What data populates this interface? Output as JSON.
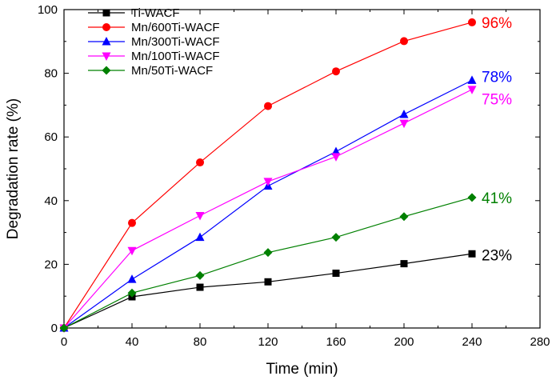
{
  "chart_data": {
    "type": "line",
    "title": "",
    "xlabel": "Time (min)",
    "ylabel": "Degradation rate (%)",
    "xlim": [
      0,
      280
    ],
    "ylim": [
      0,
      100
    ],
    "x_ticks": [
      0,
      40,
      80,
      120,
      160,
      200,
      240,
      280
    ],
    "y_ticks": [
      0,
      20,
      40,
      60,
      80,
      100
    ],
    "grid": false,
    "legend_position": "top-left",
    "x": [
      0,
      40,
      80,
      120,
      160,
      200,
      240
    ],
    "series": [
      {
        "name": "Ti-WACF",
        "color": "#000000",
        "marker": "square",
        "values": [
          0,
          9.8,
          12.8,
          14.5,
          17.2,
          20.2,
          23.3
        ]
      },
      {
        "name": "Mn/600Ti-WACF",
        "color": "#ff0000",
        "marker": "circle",
        "values": [
          0,
          33,
          52,
          69.7,
          80.6,
          90.1,
          96
        ]
      },
      {
        "name": "Mn/300Ti-WACF",
        "color": "#0000ff",
        "marker": "triangle-up",
        "values": [
          0,
          15.3,
          28.5,
          44.6,
          55.4,
          67.1,
          77.8
        ]
      },
      {
        "name": "Mn/100Ti-WACF",
        "color": "#ff00ff",
        "marker": "triangle-down",
        "values": [
          0,
          24.3,
          35.3,
          46,
          53.8,
          64.3,
          74.9
        ]
      },
      {
        "name": "Mn/50Ti-WACF",
        "color": "#008000",
        "marker": "diamond",
        "values": [
          0,
          11,
          16.5,
          23.7,
          28.5,
          35,
          41
        ]
      }
    ],
    "annotations": [
      {
        "text": "96%",
        "x": 240,
        "y": 96,
        "color": "#ff0000"
      },
      {
        "text": "78%",
        "x": 240,
        "y": 79,
        "color": "#0000ff"
      },
      {
        "text": "75%",
        "x": 240,
        "y": 72,
        "color": "#ff00ff"
      },
      {
        "text": "41%",
        "x": 240,
        "y": 41,
        "color": "#008000"
      },
      {
        "text": "23%",
        "x": 240,
        "y": 23,
        "color": "#000000"
      }
    ]
  }
}
